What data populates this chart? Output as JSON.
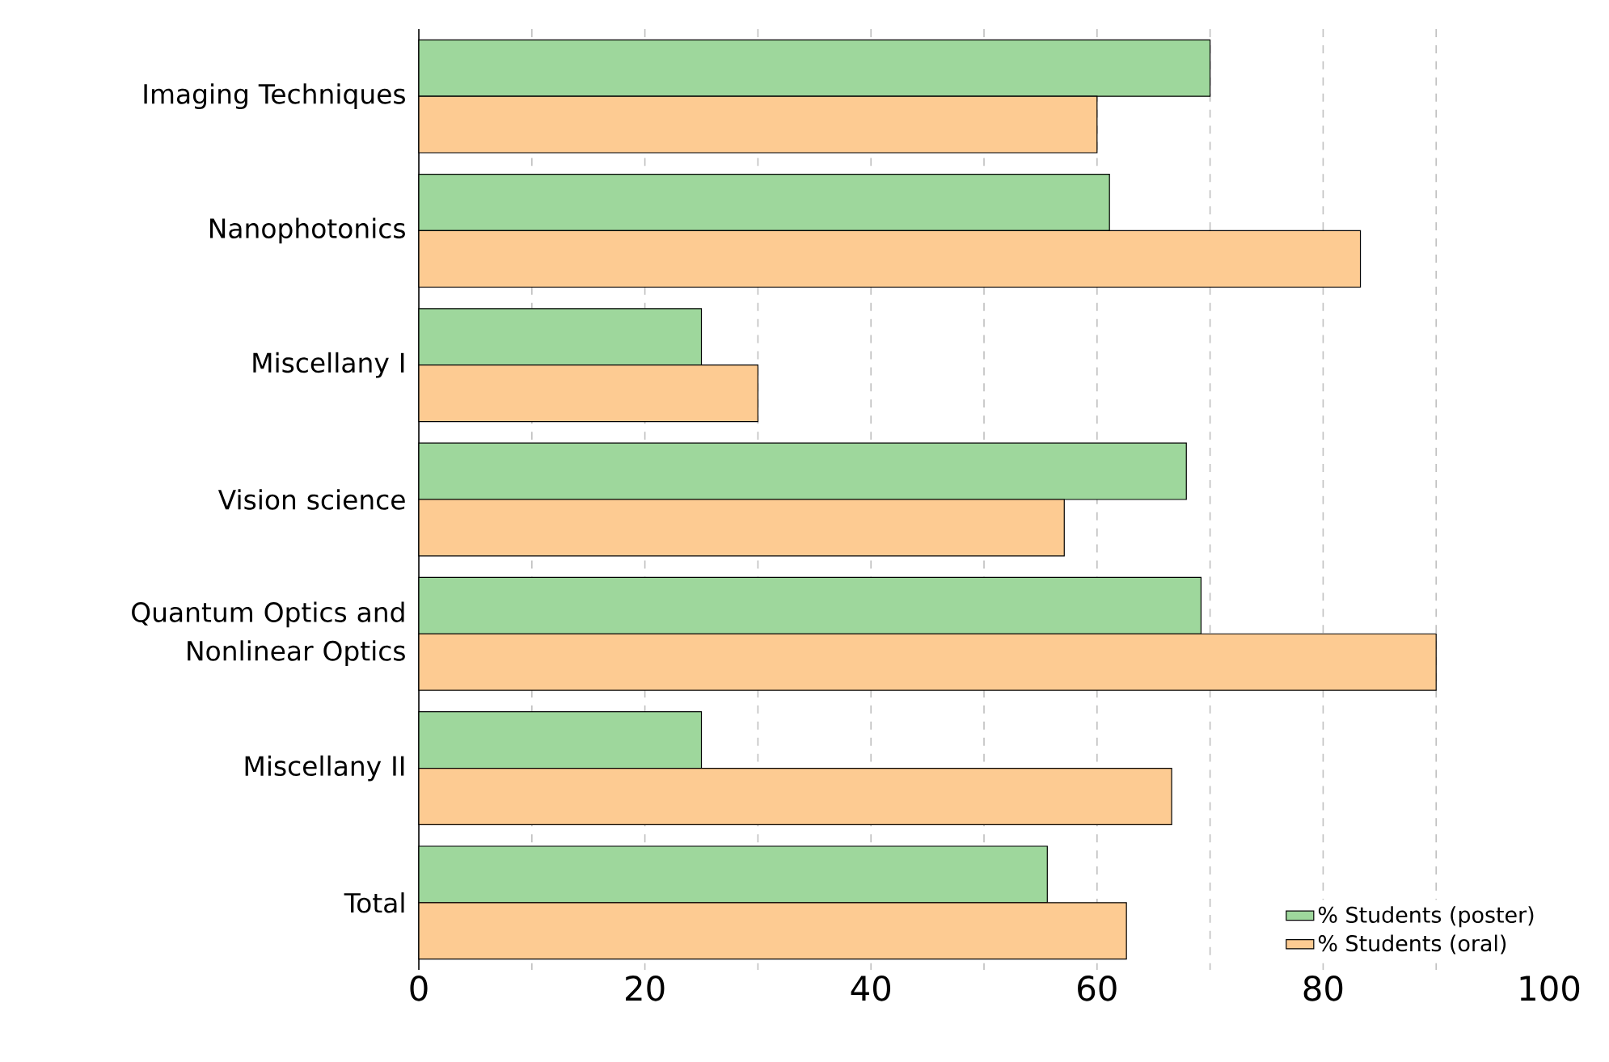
{
  "chart_data": {
    "type": "bar",
    "orientation": "horizontal",
    "categories": [
      "Imaging Techniques",
      "Nanophotonics",
      "Miscellany I",
      "Vision science",
      "Quantum Optics and Nonlinear Optics",
      "Miscellany II",
      "Total"
    ],
    "series": [
      {
        "name": "% Students (poster)",
        "color": "#9ed79c",
        "values": [
          70,
          61.1,
          25,
          67.9,
          69.2,
          25,
          55.6
        ]
      },
      {
        "name": "% Students (oral)",
        "color": "#fdcb92",
        "values": [
          60,
          83.3,
          30,
          57.1,
          90,
          66.6,
          62.6
        ]
      }
    ],
    "xlim": [
      0,
      100
    ],
    "xticks": [
      0,
      {
        "value": 10,
        "label": null
      },
      20,
      {
        "value": 30,
        "label": null
      },
      40,
      {
        "value": 50,
        "label": null
      },
      60,
      {
        "value": 70,
        "label": null
      },
      80,
      {
        "value": 90,
        "label": null
      },
      100
    ],
    "grid": "x",
    "legend": "bottom right"
  }
}
